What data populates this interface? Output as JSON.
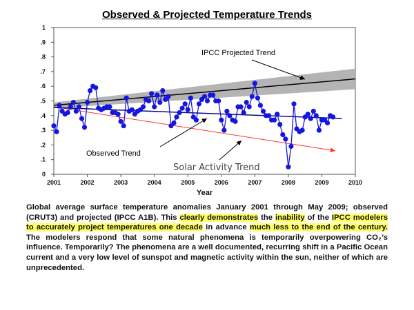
{
  "page": {
    "title": "Observed & Projected Temperature Trends"
  },
  "colors": {
    "points": "#1515e0",
    "observed_trend": "#0b0b80",
    "projected_trend": "#000000",
    "projected_band": "#b4b4b4",
    "solar_trend": "#ff3333",
    "highlight": "#ffff66"
  },
  "chart_data": {
    "type": "line",
    "title": "Observed & Projected Temperature Trends",
    "xlabel": "Year",
    "ylabel": "",
    "xlim": [
      2001,
      2010
    ],
    "ylim": [
      0,
      1
    ],
    "x_ticks": [
      2001,
      2002,
      2003,
      2004,
      2005,
      2006,
      2007,
      2008,
      2009,
      2010
    ],
    "y_ticks": [
      0,
      0.1,
      0.2,
      0.3,
      0.4,
      0.5,
      0.6,
      0.7,
      0.8,
      0.9,
      1
    ],
    "y_tick_labels": [
      "0",
      ".1",
      ".2",
      ".3",
      ".4",
      ".5",
      ".6",
      ".7",
      ".8",
      ".9",
      "1"
    ],
    "series": [
      {
        "name": "Observed (CRUT3)",
        "style": "markers+line",
        "start": 2001.0,
        "step": 0.08333,
        "values": [
          0.33,
          0.29,
          0.47,
          0.43,
          0.41,
          0.42,
          0.46,
          0.49,
          0.43,
          0.46,
          0.38,
          0.32,
          0.49,
          0.57,
          0.6,
          0.59,
          0.45,
          0.44,
          0.45,
          0.46,
          0.46,
          0.42,
          0.42,
          0.41,
          0.36,
          0.33,
          0.52,
          0.43,
          0.44,
          0.41,
          0.43,
          0.44,
          0.46,
          0.51,
          0.5,
          0.55,
          0.46,
          0.54,
          0.49,
          0.57,
          0.51,
          0.53,
          0.33,
          0.35,
          0.39,
          0.42,
          0.45,
          0.48,
          0.44,
          0.52,
          0.39,
          0.37,
          0.48,
          0.51,
          0.53,
          0.5,
          0.54,
          0.54,
          0.5,
          0.5,
          0.37,
          0.3,
          0.43,
          0.4,
          0.37,
          0.36,
          0.46,
          0.46,
          0.42,
          0.49,
          0.46,
          0.53,
          0.62,
          0.52,
          0.47,
          0.43,
          0.4,
          0.4,
          0.37,
          0.37,
          0.41,
          0.34,
          0.27,
          0.24,
          0.05,
          0.19,
          0.48,
          0.31,
          0.29,
          0.3,
          0.39,
          0.41,
          0.38,
          0.43,
          0.4,
          0.3,
          0.37,
          0.37,
          0.35,
          0.4,
          0.39
        ]
      },
      {
        "name": "IPCC Projected Trend",
        "style": "line",
        "x": [
          2001,
          2010
        ],
        "values": [
          0.47,
          0.65
        ],
        "band": {
          "lower": [
            0.45,
            0.58
          ],
          "upper": [
            0.49,
            0.72
          ]
        }
      },
      {
        "name": "Observed Trend",
        "style": "line",
        "x": [
          2001,
          2009.6
        ],
        "values": [
          0.455,
          0.38
        ]
      },
      {
        "name": "Solar Activity Trend",
        "style": "arrow",
        "x": [
          2001,
          2009.4
        ],
        "values": [
          0.46,
          0.16
        ]
      }
    ],
    "annotations": [
      {
        "text": "IPCC Projected Trend",
        "target": "projected"
      },
      {
        "text": "Observed Trend",
        "target": "observed"
      },
      {
        "text": "Solar Activity Trend",
        "target": "solar"
      }
    ]
  },
  "caption": {
    "segments": [
      {
        "text": "Global average surface temperature anomalies January 2001 through May 2009; observed (CRUT3) and projected (IPCC A1B). This ",
        "highlight": false
      },
      {
        "text": "clearly demonstrates",
        "highlight": true
      },
      {
        "text": " the ",
        "highlight": false
      },
      {
        "text": "inability",
        "highlight": true
      },
      {
        "text": " of the ",
        "highlight": false
      },
      {
        "text": "IPCC modelers to accurately project temperatures one decade",
        "highlight": true
      },
      {
        "text": " in advance ",
        "highlight": false
      },
      {
        "text": "much less to the end of the century.",
        "highlight": true
      },
      {
        "text": " The modelers respond that some natural phenomena is temporarily overpowering CO₂’s influence. Temporarily? The phenomena are a well documented, recurring shift in a Pacific Ocean current and a very low level of sunspot and magnetic activity within the sun, neither of which are unprecedented.",
        "highlight": false
      }
    ]
  }
}
